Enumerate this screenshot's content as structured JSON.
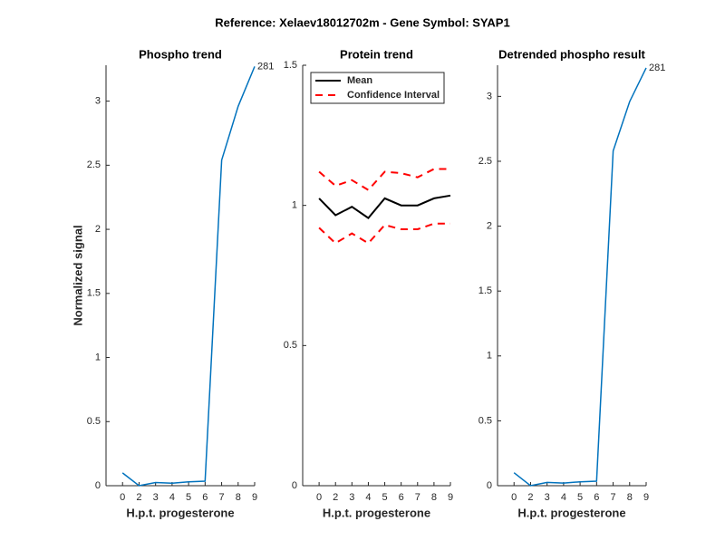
{
  "title": "Reference:  Xelaev18012702m - Gene Symbol:  SYAP1",
  "chart_data": [
    {
      "type": "line",
      "title": "Phospho trend",
      "xlabel": "H.p.t. progesterone",
      "ylabel": "Normalized signal",
      "categories": [
        "0",
        "2",
        "3",
        "4",
        "5",
        "6",
        "7",
        "8",
        "9"
      ],
      "series": [
        {
          "color": "#0072bd",
          "values": [
            0.1,
            0.0,
            0.025,
            0.02,
            0.03,
            0.035,
            2.54,
            2.96,
            3.27
          ]
        }
      ],
      "annotation": "281",
      "ylim": [
        0,
        3.28
      ],
      "yticks": [
        0,
        0.5,
        1,
        1.5,
        2,
        2.5,
        3
      ]
    },
    {
      "type": "line",
      "title": "Protein trend",
      "xlabel": "H.p.t. progesterone",
      "categories": [
        "0",
        "2",
        "3",
        "4",
        "5",
        "6",
        "7",
        "8",
        "9"
      ],
      "series": [
        {
          "name": "Mean",
          "color": "#000000",
          "values": [
            1.025,
            0.965,
            0.995,
            0.955,
            1.025,
            1.0,
            1.0,
            1.025,
            1.035
          ]
        },
        {
          "name": "Confidence Interval",
          "color": "#ff0000",
          "dashed": true,
          "values": [
            1.12,
            1.07,
            1.09,
            1.055,
            1.12,
            1.115,
            1.1,
            1.13,
            1.13
          ],
          "lower": [
            0.92,
            0.865,
            0.9,
            0.865,
            0.93,
            0.915,
            0.915,
            0.935,
            0.935
          ]
        }
      ],
      "legend": "top-left",
      "ylim": [
        0,
        1.5
      ],
      "yticks": [
        0,
        0.5,
        1,
        1.5
      ]
    },
    {
      "type": "line",
      "title": "Detrended phospho result",
      "xlabel": "H.p.t. progesterone",
      "categories": [
        "0",
        "2",
        "3",
        "4",
        "5",
        "6",
        "7",
        "8",
        "9"
      ],
      "series": [
        {
          "color": "#0072bd",
          "values": [
            0.1,
            0.0,
            0.025,
            0.02,
            0.03,
            0.035,
            2.58,
            2.96,
            3.22
          ]
        }
      ],
      "annotation": "281",
      "ylim": [
        0,
        3.24
      ],
      "yticks": [
        0,
        0.5,
        1,
        1.5,
        2,
        2.5,
        3
      ]
    }
  ]
}
